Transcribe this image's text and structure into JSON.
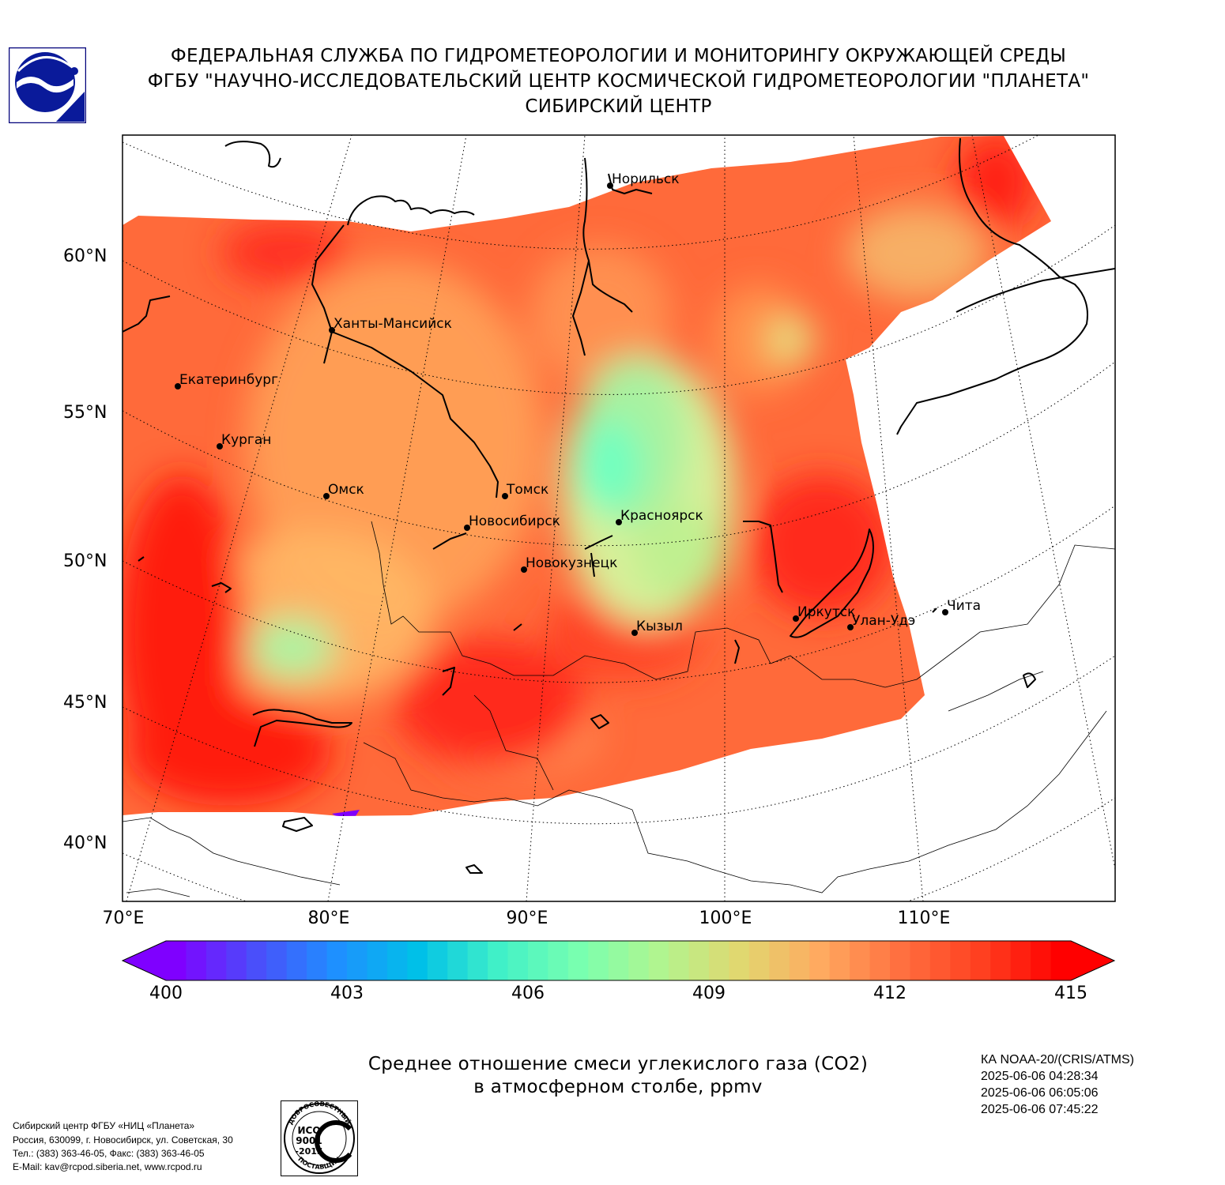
{
  "header": {
    "line1": "ФЕДЕРАЛЬНАЯ СЛУЖБА ПО ГИДРОМЕТЕОРОЛОГИИ И МОНИТОРИНГУ ОКРУЖАЮЩЕЙ СРЕДЫ",
    "line2": "ФГБУ \"НАУЧНО-ИССЛЕДОВАТЕЛЬСКИЙ ЦЕНТР КОСМИЧЕСКОЙ ГИДРОМЕТЕОРОЛОГИИ \"ПЛАНЕТА\"",
    "line3": "СИБИРСКИЙ ЦЕНТР"
  },
  "logo_icon": "planeta-logo-icon",
  "map": {
    "lat_labels": [
      "60°N",
      "55°N",
      "50°N",
      "45°N",
      "40°N"
    ],
    "lon_labels": [
      "70°E",
      "80°E",
      "90°E",
      "100°E",
      "110°E"
    ],
    "cities": [
      {
        "name": "Норильск"
      },
      {
        "name": "Ханты-Мансийск"
      },
      {
        "name": "Екатеринбург"
      },
      {
        "name": "Курган"
      },
      {
        "name": "Омск"
      },
      {
        "name": "Томск"
      },
      {
        "name": "Новосибирск"
      },
      {
        "name": "Красноярск"
      },
      {
        "name": "Новокузнецк"
      },
      {
        "name": "Кызыл"
      },
      {
        "name": "Иркутск"
      },
      {
        "name": "Улан-Удэ"
      },
      {
        "name": "Чита"
      }
    ],
    "fill_colors": {
      "high": "#ff2a1f",
      "mid_high": "#ff6a3a",
      "mid": "#ffa65a",
      "low": "#a8f0a0",
      "lowest": "#6fffc0"
    }
  },
  "colorbar": {
    "ticks": [
      "400",
      "403",
      "406",
      "409",
      "412",
      "415"
    ],
    "min": 400,
    "max": 415,
    "colors": [
      "#7f00ff",
      "#4a4ffa",
      "#1e90ff",
      "#00c0e8",
      "#40f0c8",
      "#78ffb0",
      "#b0f590",
      "#e0d870",
      "#ffaa60",
      "#ff7040",
      "#ff4020",
      "#ff0000"
    ]
  },
  "title": {
    "line1": "Среднее отношение смеси углекислого газа (CO2)",
    "line2": "в атмосферном столбе, ppmv"
  },
  "satellite": {
    "name": "КА NOAA-20/(CRIS/ATMS)",
    "times": [
      "2025-06-06 04:28:34",
      "2025-06-06 06:05:06",
      "2025-06-06 07:45:22"
    ]
  },
  "footer": {
    "line1": "Сибирский центр ФГБУ «НИЦ «Планета»",
    "line2": "Россия, 630099, г. Новосибирск, ул. Советская, 30",
    "line3": "Тел.: (383) 363-46-05, Факс: (383) 363-46-05",
    "line4": "E-Mail: kav@rcpod.siberia.net, www.rcpod.ru"
  },
  "iso_badge": {
    "top": "ДОБРОСОВЕСТНЫЙ",
    "l1": "ИСО",
    "l2": "9001",
    "l3": "-2015",
    "bottom": "ПОСТАВЩИК"
  }
}
